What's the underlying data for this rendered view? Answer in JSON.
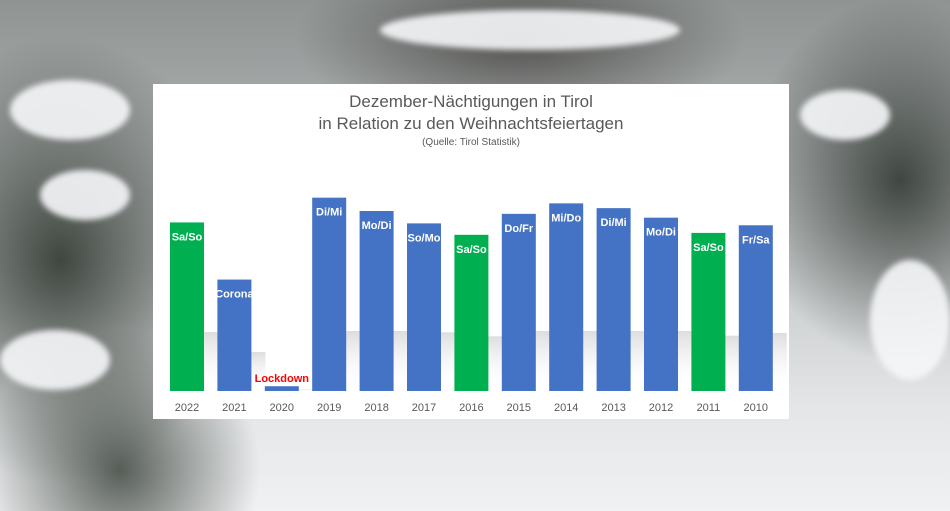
{
  "chart_data": {
    "type": "bar",
    "title": "Dezember-Nächtigungen in Tirol",
    "subtitle": "in Relation zu den Weihnachtsfeiertagen",
    "source": "(Quelle: Tirol Statistik)",
    "categories": [
      "2022",
      "2021",
      "2020",
      "2019",
      "2018",
      "2017",
      "2016",
      "2015",
      "2014",
      "2013",
      "2012",
      "2011",
      "2010"
    ],
    "values": [
      177,
      117,
      5,
      203,
      189,
      176,
      164,
      186,
      197,
      192,
      182,
      166,
      174
    ],
    "labels": [
      "Sa/So",
      "Corona",
      "Lockdown",
      "Di/Mi",
      "Mo/Di",
      "So/Mo",
      "Sa/So",
      "Do/Fr",
      "Mi/Do",
      "Di/Mi",
      "Mo/Di",
      "Sa/So",
      "Fr/Sa"
    ],
    "bar_colors": [
      "#00b050",
      "#4472c4",
      "#4472c4",
      "#4472c4",
      "#4472c4",
      "#4472c4",
      "#00b050",
      "#4472c4",
      "#4472c4",
      "#4472c4",
      "#4472c4",
      "#00b050",
      "#4472c4"
    ],
    "label_colors": [
      "#ffffff",
      "#ffffff",
      "#ff0000",
      "#ffffff",
      "#ffffff",
      "#ffffff",
      "#ffffff",
      "#ffffff",
      "#ffffff",
      "#ffffff",
      "#ffffff",
      "#ffffff",
      "#ffffff"
    ],
    "ylim": [
      0,
      210
    ],
    "grid": false,
    "legend": "none"
  }
}
